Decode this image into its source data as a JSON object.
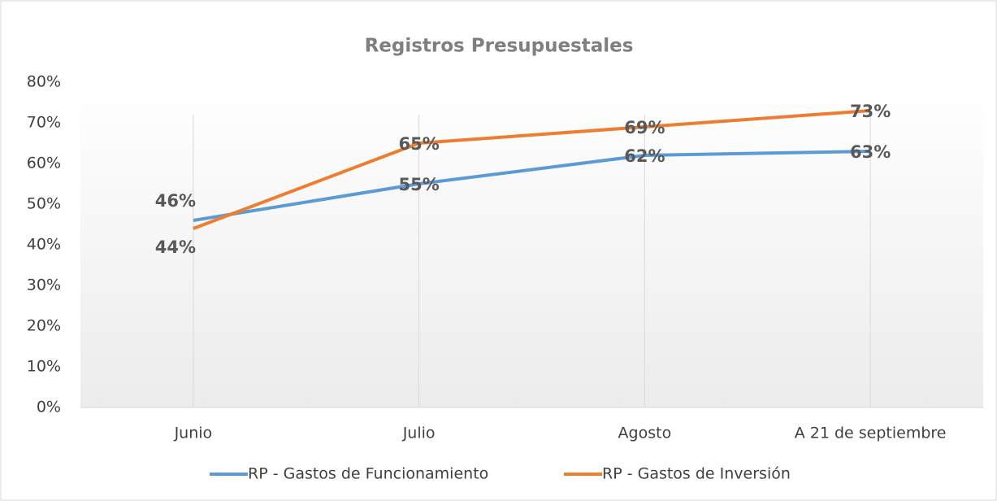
{
  "chart_data": {
    "type": "line",
    "title": "Registros Presupuestales",
    "categories": [
      "Junio",
      "Julio",
      "Agosto",
      "A 21 de septiembre"
    ],
    "series": [
      {
        "name": "RP - Gastos de Funcionamiento",
        "color": "#5b9bd5",
        "values": [
          46,
          55,
          62,
          63
        ],
        "value_labels": [
          "46%",
          "55%",
          "62%",
          "63%"
        ]
      },
      {
        "name": "RP - Gastos de Inversión",
        "color": "#ed7d31",
        "values": [
          44,
          65,
          69,
          73
        ],
        "value_labels": [
          "44%",
          "65%",
          "69%",
          "73%"
        ]
      }
    ],
    "ylim": [
      0,
      80
    ],
    "yticks": [
      {
        "value": 0,
        "label": "0%"
      },
      {
        "value": 10,
        "label": "10%"
      },
      {
        "value": 20,
        "label": "20%"
      },
      {
        "value": 30,
        "label": "30%"
      },
      {
        "value": 40,
        "label": "40%"
      },
      {
        "value": 50,
        "label": "50%"
      },
      {
        "value": 60,
        "label": "60%"
      },
      {
        "value": 70,
        "label": "70%"
      },
      {
        "value": 80,
        "label": "80%"
      }
    ],
    "grid": false,
    "legend": "bottom"
  }
}
